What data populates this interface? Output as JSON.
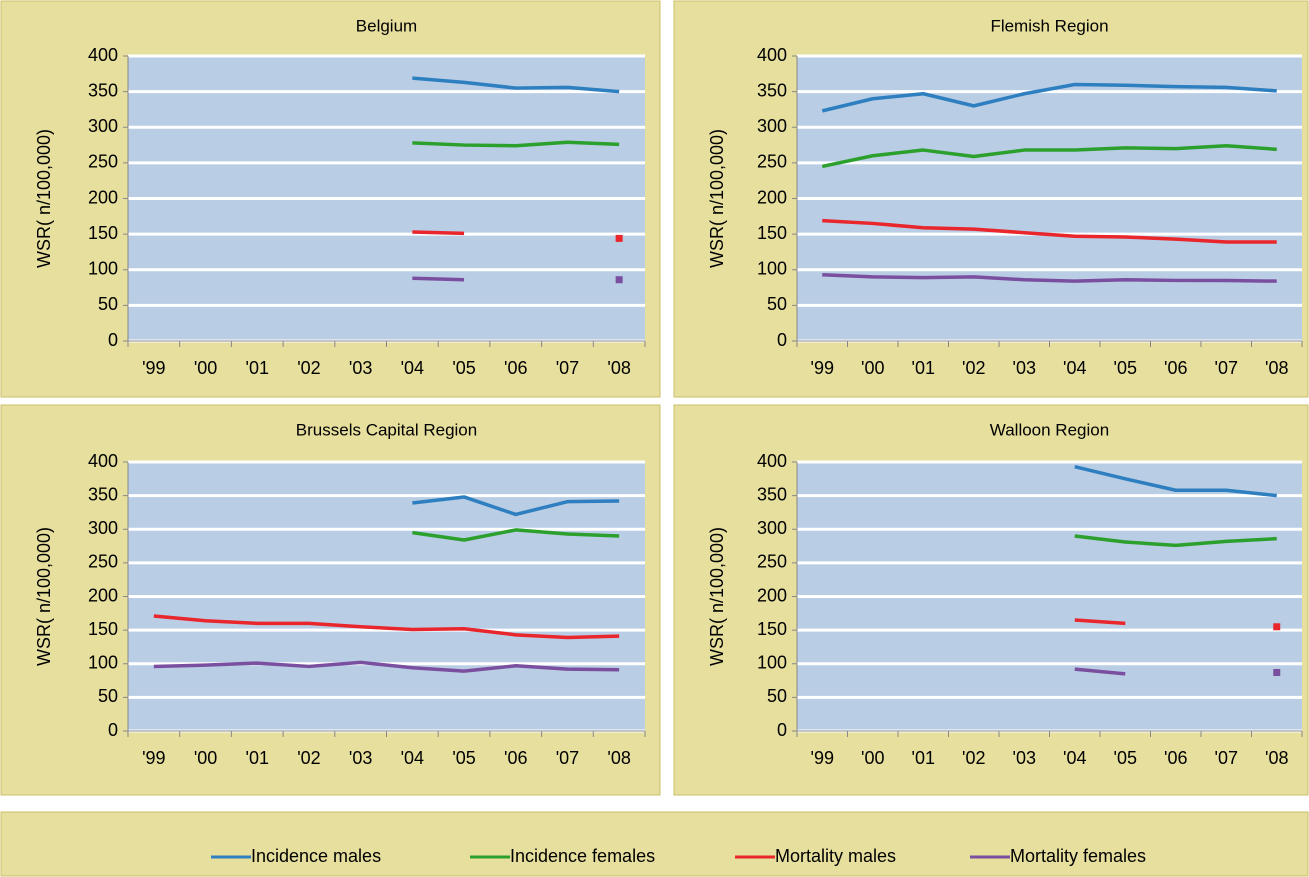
{
  "chart_data": [
    {
      "type": "line",
      "title": "Belgium",
      "y_label": "WSR( n/100,000)",
      "categories": [
        "'99",
        "'00",
        "'01",
        "'02",
        "'03",
        "'04",
        "'05",
        "'06",
        "'07",
        "'08"
      ],
      "series": [
        {
          "values": [
            null,
            null,
            null,
            null,
            null,
            369,
            363,
            355,
            356,
            350
          ]
        },
        {
          "values": [
            null,
            null,
            null,
            null,
            null,
            278,
            275,
            274,
            279,
            276
          ]
        },
        {
          "values": [
            null,
            null,
            null,
            null,
            null,
            153,
            151,
            null,
            null,
            144
          ]
        },
        {
          "values": [
            null,
            null,
            null,
            null,
            null,
            88,
            86,
            null,
            null,
            86
          ]
        }
      ],
      "ylim": [
        0,
        400
      ],
      "yticks": [
        0,
        50,
        100,
        150,
        200,
        250,
        300,
        350,
        400
      ],
      "grid": true
    },
    {
      "type": "line",
      "title": "Flemish Region",
      "y_label": "WSR( n/100,000)",
      "categories": [
        "'99",
        "'00",
        "'01",
        "'02",
        "'03",
        "'04",
        "'05",
        "'06",
        "'07",
        "'08"
      ],
      "series": [
        {
          "values": [
            323,
            340,
            347,
            330,
            347,
            360,
            359,
            357,
            356,
            351
          ]
        },
        {
          "values": [
            245,
            260,
            268,
            259,
            268,
            268,
            271,
            270,
            274,
            269
          ]
        },
        {
          "values": [
            169,
            165,
            159,
            157,
            152,
            147,
            146,
            143,
            139,
            139
          ]
        },
        {
          "values": [
            93,
            90,
            89,
            90,
            86,
            84,
            86,
            85,
            85,
            84
          ]
        }
      ],
      "ylim": [
        0,
        400
      ],
      "yticks": [
        0,
        50,
        100,
        150,
        200,
        250,
        300,
        350,
        400
      ],
      "grid": true
    },
    {
      "type": "line",
      "title": "Brussels Capital Region",
      "y_label": "WSR( n/100,000)",
      "categories": [
        "'99",
        "'00",
        "'01",
        "'02",
        "'03",
        "'04",
        "'05",
        "'06",
        "'07",
        "'08"
      ],
      "series": [
        {
          "values": [
            null,
            null,
            null,
            null,
            null,
            339,
            348,
            322,
            341,
            342
          ]
        },
        {
          "values": [
            null,
            null,
            null,
            null,
            null,
            295,
            284,
            299,
            293,
            290
          ]
        },
        {
          "values": [
            171,
            164,
            160,
            160,
            155,
            151,
            152,
            143,
            139,
            141
          ]
        },
        {
          "values": [
            96,
            98,
            101,
            96,
            102,
            94,
            89,
            97,
            92,
            91
          ]
        }
      ],
      "ylim": [
        0,
        400
      ],
      "yticks": [
        0,
        50,
        100,
        150,
        200,
        250,
        300,
        350,
        400
      ],
      "grid": true
    },
    {
      "type": "line",
      "title": "Walloon Region",
      "y_label": "WSR( n/100,000)",
      "categories": [
        "'99",
        "'00",
        "'01",
        "'02",
        "'03",
        "'04",
        "'05",
        "'06",
        "'07",
        "'08"
      ],
      "series": [
        {
          "values": [
            null,
            null,
            null,
            null,
            null,
            393,
            375,
            358,
            358,
            350
          ]
        },
        {
          "values": [
            null,
            null,
            null,
            null,
            null,
            290,
            281,
            276,
            282,
            286
          ]
        },
        {
          "values": [
            null,
            null,
            null,
            null,
            null,
            165,
            160,
            null,
            null,
            155
          ]
        },
        {
          "values": [
            null,
            null,
            null,
            null,
            null,
            92,
            85,
            null,
            null,
            87
          ]
        }
      ],
      "ylim": [
        0,
        400
      ],
      "yticks": [
        0,
        50,
        100,
        150,
        200,
        250,
        300,
        350,
        400
      ],
      "grid": true
    }
  ],
  "legend": {
    "series": [
      {
        "name": "Incidence males",
        "color": "#2e7fc0"
      },
      {
        "name": "Incidence females",
        "color": "#2ca02c"
      },
      {
        "name": "Mortality males",
        "color": "#e8262b"
      },
      {
        "name": "Mortality females",
        "color": "#7a4fa0"
      }
    ]
  }
}
